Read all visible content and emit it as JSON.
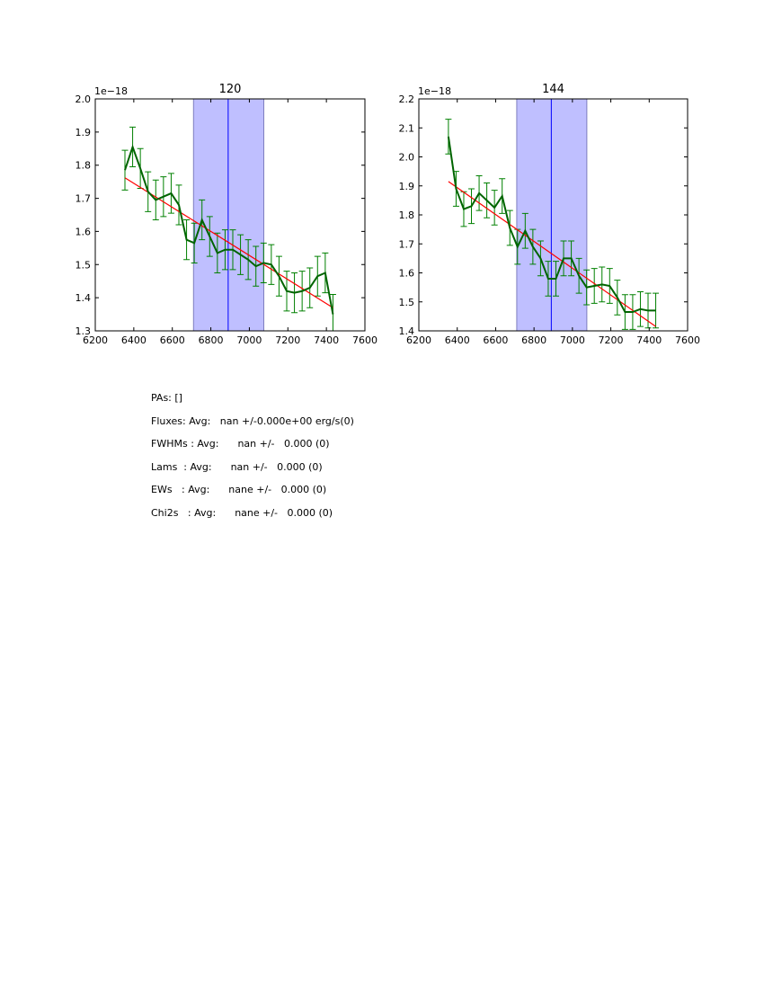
{
  "chart_data": [
    {
      "type": "line",
      "title": "120",
      "offset_label": "1e−18",
      "xlim": [
        6200,
        7600
      ],
      "ylim": [
        1.3,
        2.0
      ],
      "xticks": [
        "6200",
        "6400",
        "6600",
        "6800",
        "7000",
        "7200",
        "7400",
        "7600"
      ],
      "yticks": [
        "1.3",
        "1.4",
        "1.5",
        "1.6",
        "1.7",
        "1.8",
        "1.9",
        "2.0"
      ],
      "x": [
        6354,
        6394,
        6434,
        6474,
        6514,
        6554,
        6594,
        6634,
        6674,
        6714,
        6754,
        6794,
        6834,
        6874,
        6914,
        6954,
        6994,
        7034,
        7074,
        7114,
        7154,
        7194,
        7234,
        7274,
        7314,
        7354,
        7394,
        7434
      ],
      "y": [
        1.785,
        1.855,
        1.79,
        1.72,
        1.695,
        1.705,
        1.715,
        1.68,
        1.575,
        1.565,
        1.635,
        1.585,
        1.535,
        1.545,
        1.545,
        1.53,
        1.515,
        1.495,
        1.505,
        1.5,
        1.465,
        1.42,
        1.415,
        1.42,
        1.43,
        1.465,
        1.475,
        1.35
      ],
      "yerr": 0.06,
      "fit": {
        "x": [
          6354,
          7434
        ],
        "y": [
          1.762,
          1.37
        ]
      },
      "band": [
        6710,
        7075
      ],
      "center_line": 6890,
      "colors": {
        "data": "#006400",
        "err": "#008000",
        "fit": "#ff0000",
        "band": "#bfbfff",
        "center": "#0000ff"
      }
    },
    {
      "type": "line",
      "title": "144",
      "offset_label": "1e−18",
      "xlim": [
        6200,
        7600
      ],
      "ylim": [
        1.4,
        2.2
      ],
      "xticks": [
        "6200",
        "6400",
        "6600",
        "6800",
        "7000",
        "7200",
        "7400",
        "7600"
      ],
      "yticks": [
        "1.4",
        "1.5",
        "1.6",
        "1.7",
        "1.8",
        "1.9",
        "2.0",
        "2.1",
        "2.2"
      ],
      "x": [
        6354,
        6394,
        6434,
        6474,
        6514,
        6554,
        6594,
        6634,
        6674,
        6714,
        6754,
        6794,
        6834,
        6874,
        6914,
        6954,
        6994,
        7034,
        7074,
        7114,
        7154,
        7194,
        7234,
        7274,
        7314,
        7354,
        7394,
        7434
      ],
      "y": [
        2.07,
        1.89,
        1.82,
        1.83,
        1.875,
        1.85,
        1.825,
        1.865,
        1.755,
        1.69,
        1.745,
        1.69,
        1.65,
        1.58,
        1.58,
        1.65,
        1.65,
        1.59,
        1.55,
        1.555,
        1.56,
        1.555,
        1.515,
        1.465,
        1.465,
        1.475,
        1.47,
        1.47
      ],
      "yerr": 0.06,
      "fit": {
        "x": [
          6354,
          7434
        ],
        "y": [
          1.915,
          1.415
        ]
      },
      "band": [
        6710,
        7075
      ],
      "center_line": 6890,
      "colors": {
        "data": "#006400",
        "err": "#008000",
        "fit": "#ff0000",
        "band": "#bfbfff",
        "center": "#0000ff"
      }
    }
  ],
  "stats": [
    "PAs: []",
    "Fluxes: Avg:   nan +/-0.000e+00 erg/s(0)",
    "FWHMs : Avg:      nan +/-   0.000 (0)",
    "Lams  : Avg:      nan +/-   0.000 (0)",
    "EWs   : Avg:      nane +/-   0.000 (0)",
    "Chi2s   : Avg:      nane +/-   0.000 (0)"
  ]
}
